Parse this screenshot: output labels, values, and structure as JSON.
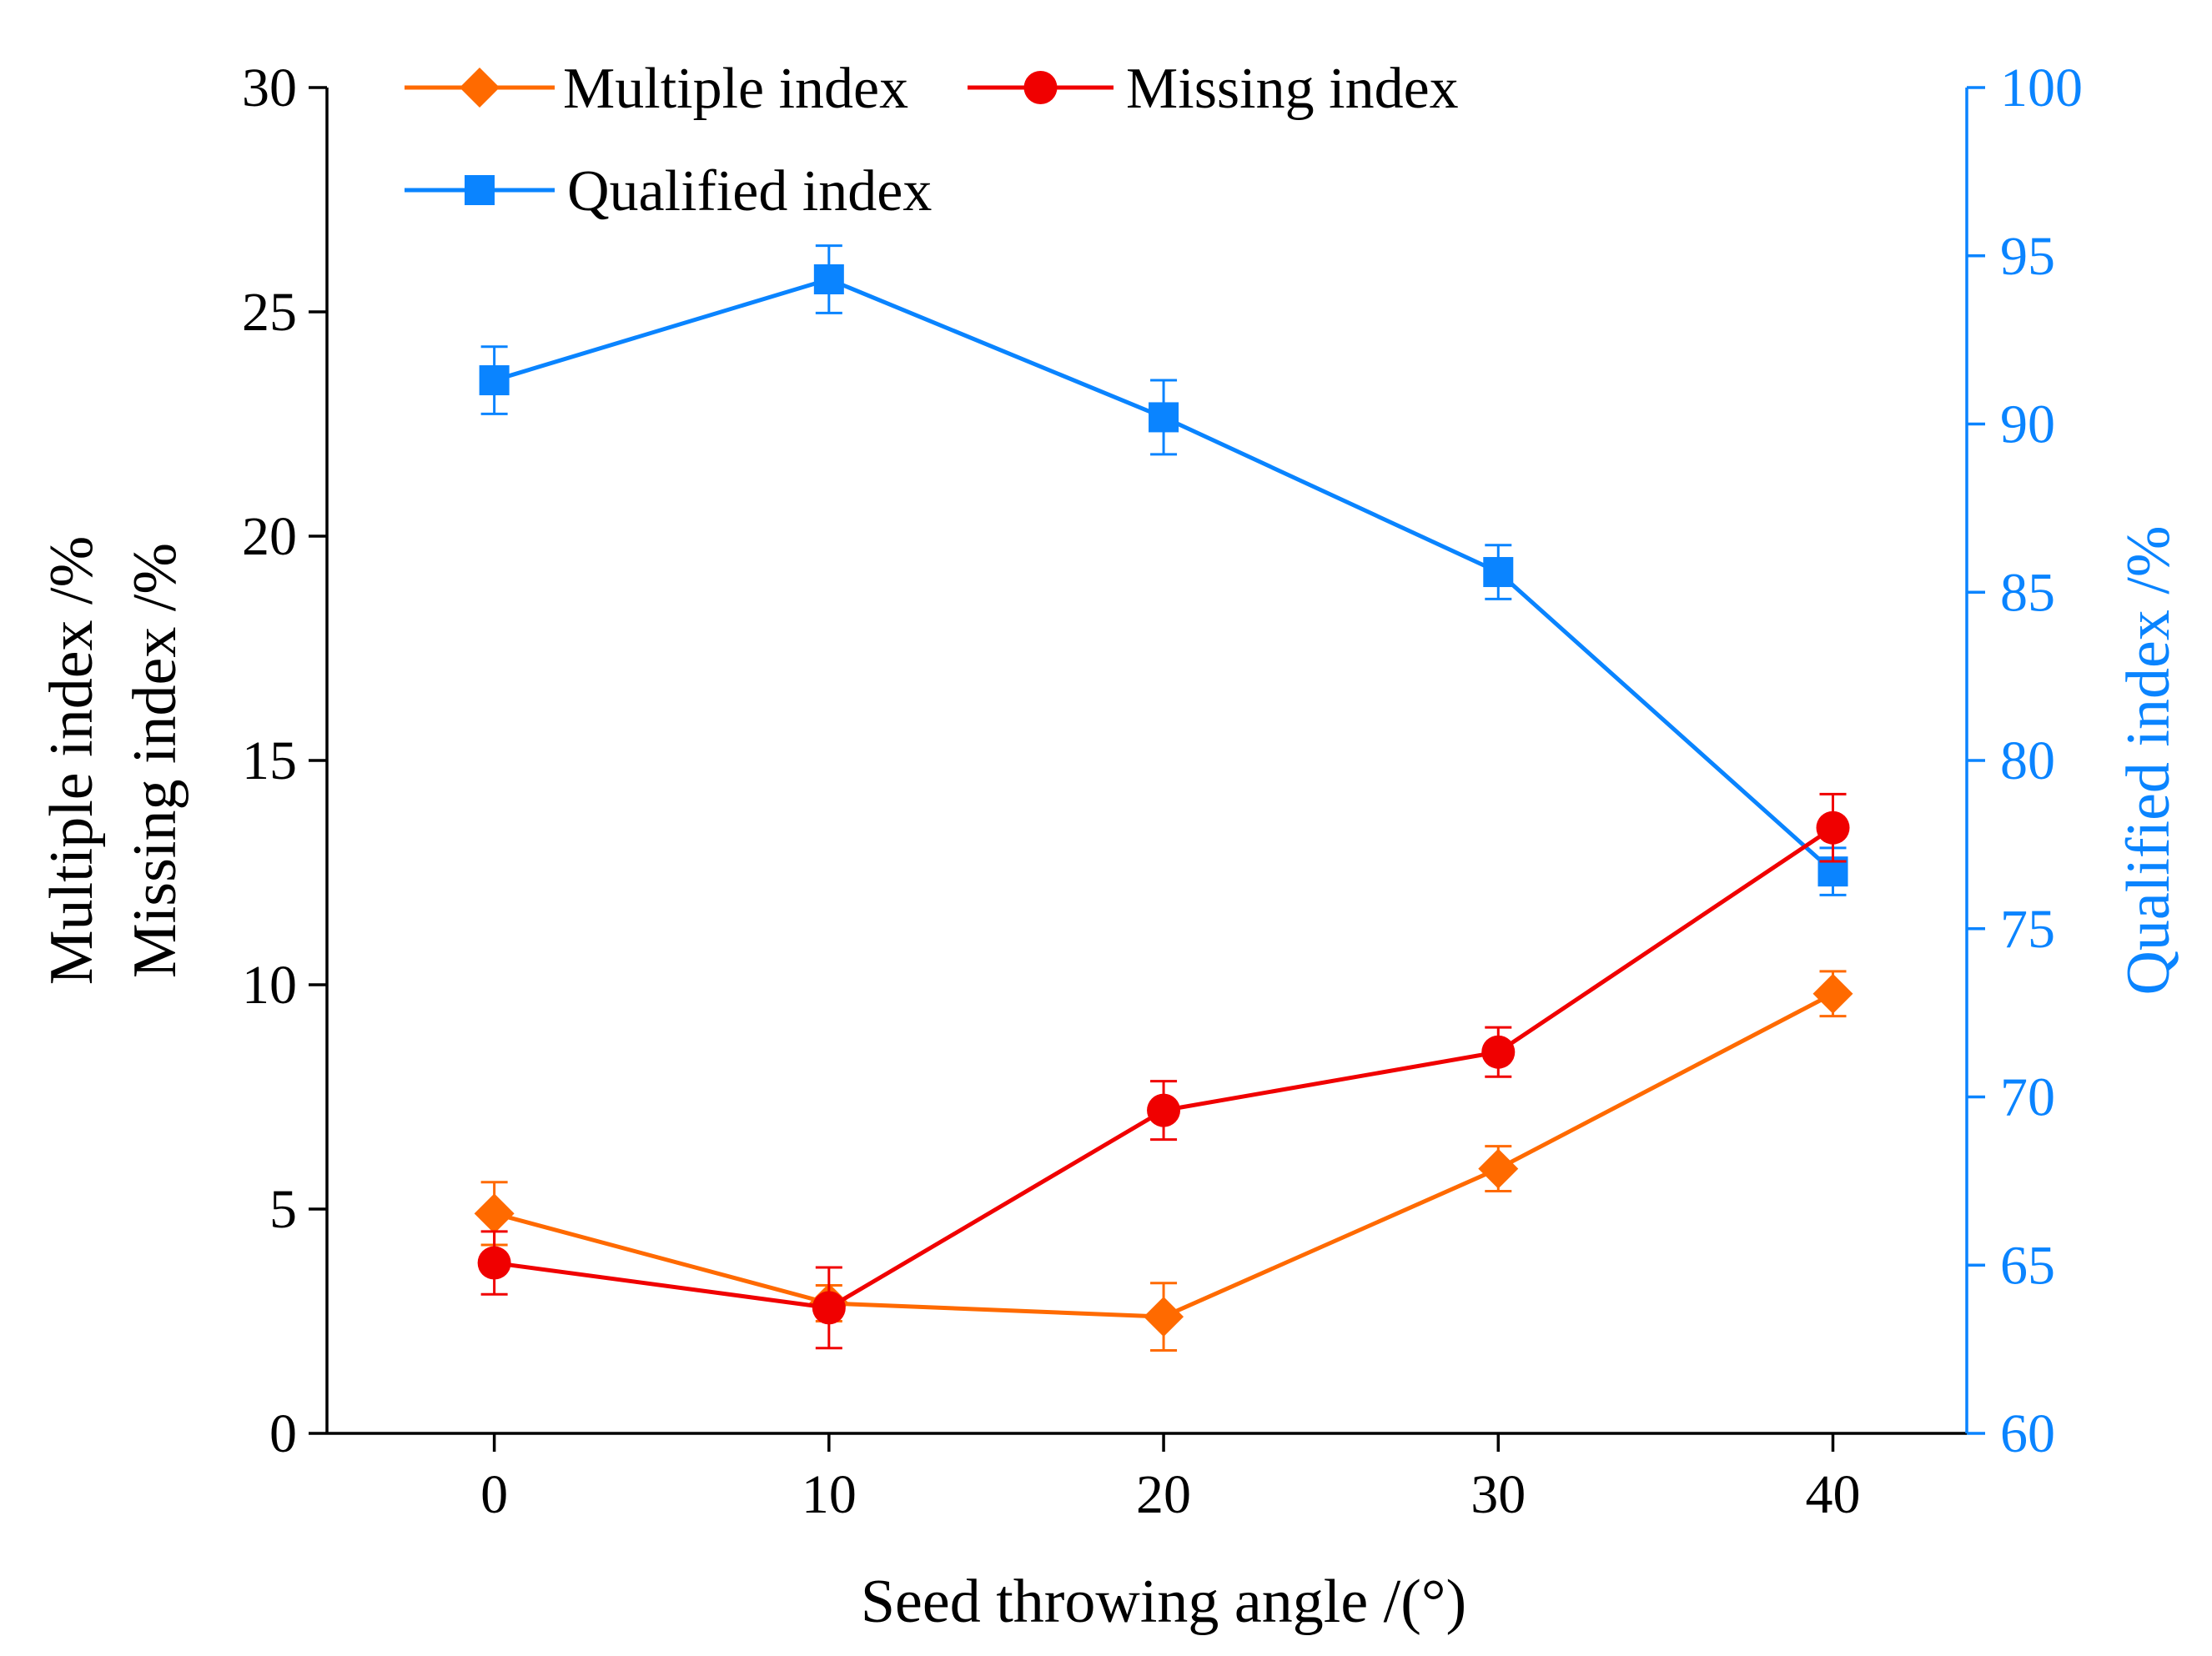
{
  "chart_data": {
    "type": "line",
    "xlabel": "Seed throwing angle /(°)",
    "ylabel_lines": [
      "Multiple index /%",
      "Missing index /%"
    ],
    "y2label": "Qualified index /%",
    "x": [
      0,
      10,
      20,
      30,
      40
    ],
    "xlim": [
      -5,
      44
    ],
    "x_ticks": [
      0,
      10,
      20,
      30,
      40
    ],
    "ylim": [
      0,
      30
    ],
    "y_ticks": [
      0,
      5,
      10,
      15,
      20,
      25,
      30
    ],
    "y2lim": [
      60,
      100
    ],
    "y2_ticks": [
      60,
      65,
      70,
      75,
      80,
      85,
      90,
      95,
      100
    ],
    "grid": false,
    "legend_position": "top-left",
    "series": [
      {
        "name": "Multiple index",
        "axis": "left",
        "marker": "diamond",
        "color": "#FF6A00",
        "values": [
          4.9,
          2.9,
          2.6,
          5.9,
          9.8
        ],
        "errors": [
          0.7,
          0.4,
          0.75,
          0.5,
          0.5
        ]
      },
      {
        "name": "Missing index",
        "axis": "left",
        "marker": "circle",
        "color": "#F00000",
        "values": [
          3.8,
          2.8,
          7.2,
          8.5,
          13.5
        ],
        "errors": [
          0.7,
          0.9,
          0.65,
          0.55,
          0.75
        ]
      },
      {
        "name": "Qualified index",
        "axis": "right",
        "marker": "square",
        "color": "#0A84FF",
        "values": [
          91.3,
          94.3,
          90.2,
          85.6,
          76.7
        ],
        "errors": [
          1.0,
          1.0,
          1.1,
          0.8,
          0.7
        ]
      }
    ]
  }
}
